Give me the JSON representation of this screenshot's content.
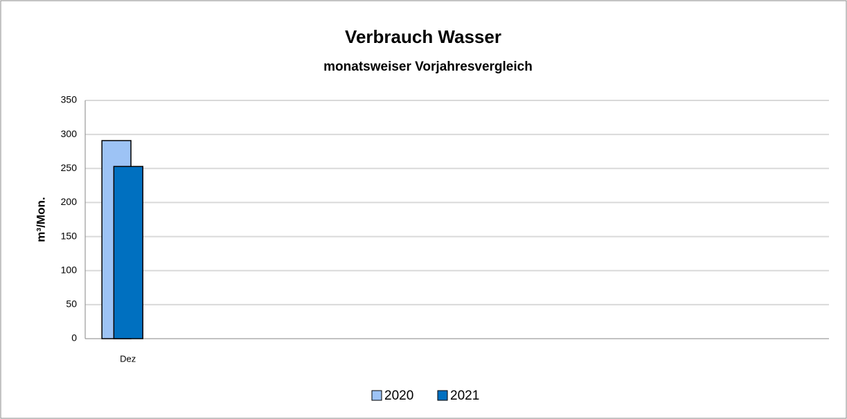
{
  "chart_data": {
    "type": "bar",
    "title": "Verbrauch Wasser",
    "subtitle": "monatsweiser Vorjahresvergleich",
    "y_label": "m³/Mon.",
    "categories": [
      "Dez",
      null,
      null,
      null,
      null,
      null,
      null,
      null,
      null,
      null
    ],
    "series": [
      {
        "name": "2020",
        "color": "#9dc3f5",
        "values": [
          291,
          null,
          null,
          null,
          null,
          null,
          null,
          null,
          null,
          null
        ]
      },
      {
        "name": "2021",
        "color": "#0070c0",
        "values": [
          253,
          null,
          null,
          null,
          null,
          null,
          null,
          null,
          null,
          null
        ]
      }
    ],
    "ylim": [
      0,
      350
    ],
    "yticks": [
      0,
      50,
      100,
      150,
      200,
      250,
      300,
      350
    ],
    "grid": true,
    "legend": "bottom"
  }
}
